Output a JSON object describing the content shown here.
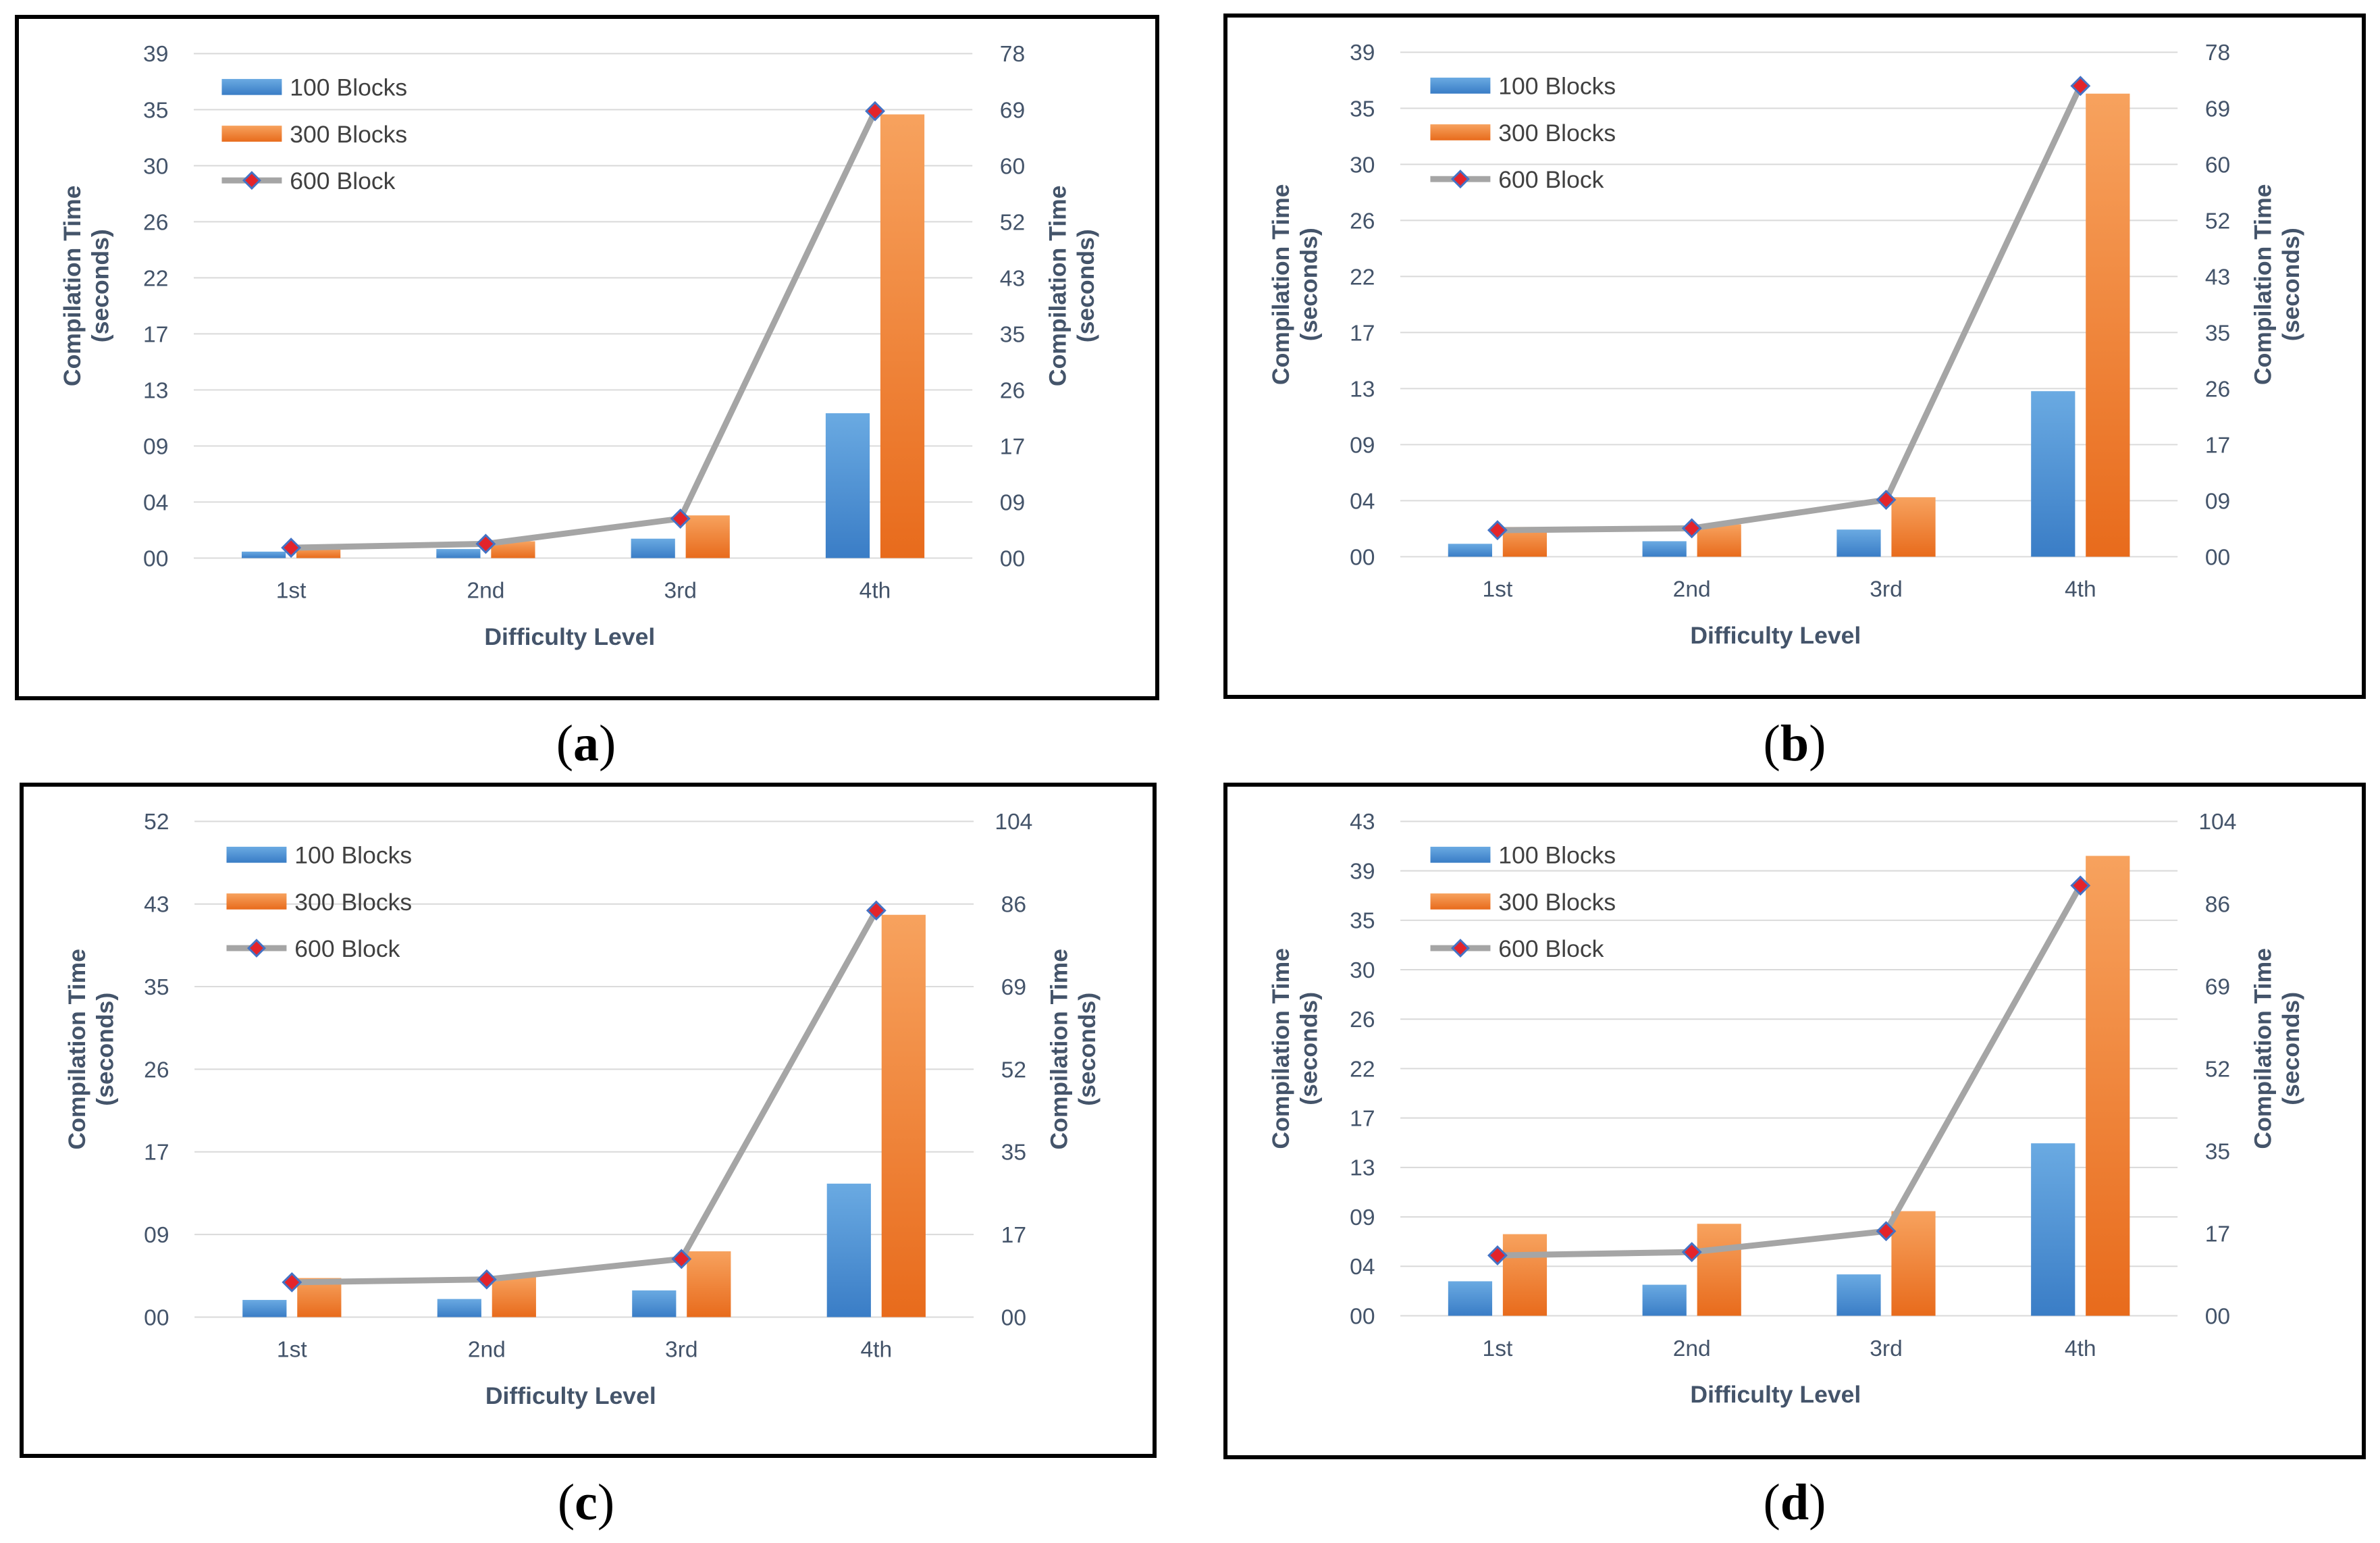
{
  "chart_data": [
    {
      "type": "bar",
      "caption": "a",
      "categories": [
        "1st",
        "2nd",
        "3rd",
        "4th"
      ],
      "xlabel": "Difficulty Level",
      "ylabel": "Compilation Time (seconds)",
      "ylabel_lines": [
        "Compilation Time",
        "(seconds)"
      ],
      "y_ticks": [
        "00",
        "04",
        "09",
        "13",
        "17",
        "22",
        "26",
        "30",
        "35",
        "39"
      ],
      "y2_ticks": [
        "00",
        "09",
        "17",
        "26",
        "35",
        "43",
        "52",
        "60",
        "69",
        "78"
      ],
      "ylim": [
        0,
        39
      ],
      "y2lim": [
        0,
        78
      ],
      "series": [
        {
          "name": "100 Blocks",
          "type": "bar",
          "axis": "left",
          "values": [
            0.5,
            0.7,
            1.5,
            11.2
          ]
        },
        {
          "name": "300 Blocks",
          "type": "bar",
          "axis": "left",
          "values": [
            0.8,
            1.3,
            3.3,
            34.3
          ]
        },
        {
          "name": "600 Block",
          "type": "line",
          "axis": "right",
          "values": [
            1.6,
            2.2,
            6.1,
            69.1
          ]
        }
      ]
    },
    {
      "type": "bar",
      "caption": "b",
      "categories": [
        "1st",
        "2nd",
        "3rd",
        "4th"
      ],
      "xlabel": "Difficulty Level",
      "ylabel": "Compilation Time (seconds)",
      "ylabel_lines": [
        "Compilation Time",
        "(seconds)"
      ],
      "y_ticks": [
        "00",
        "04",
        "09",
        "13",
        "17",
        "22",
        "26",
        "30",
        "35",
        "39"
      ],
      "y2_ticks": [
        "00",
        "09",
        "17",
        "26",
        "35",
        "43",
        "52",
        "60",
        "69",
        "78"
      ],
      "ylim": [
        0,
        39
      ],
      "y2lim": [
        0,
        78
      ],
      "series": [
        {
          "name": "100 Blocks",
          "type": "bar",
          "axis": "left",
          "values": [
            1.0,
            1.2,
            2.1,
            12.8
          ]
        },
        {
          "name": "300 Blocks",
          "type": "bar",
          "axis": "left",
          "values": [
            2.3,
            2.5,
            4.6,
            35.8
          ]
        },
        {
          "name": "600 Block",
          "type": "line",
          "axis": "right",
          "values": [
            4.1,
            4.4,
            8.8,
            72.8
          ]
        }
      ]
    },
    {
      "type": "bar",
      "caption": "c",
      "categories": [
        "1st",
        "2nd",
        "3rd",
        "4th"
      ],
      "xlabel": "Difficulty Level",
      "ylabel": "Compilation Time (seconds)",
      "ylabel_lines": [
        "Compilation Time",
        "(seconds)"
      ],
      "y_ticks": [
        "00",
        "09",
        "17",
        "26",
        "35",
        "43",
        "52"
      ],
      "y2_ticks": [
        "00",
        "17",
        "35",
        "52",
        "69",
        "86",
        "104"
      ],
      "ylim": [
        0,
        52
      ],
      "y2lim": [
        0,
        104
      ],
      "series": [
        {
          "name": "100 Blocks",
          "type": "bar",
          "axis": "left",
          "values": [
            1.8,
            1.9,
            2.8,
            14.0
          ]
        },
        {
          "name": "300 Blocks",
          "type": "bar",
          "axis": "left",
          "values": [
            4.1,
            4.3,
            6.9,
            42.2
          ]
        },
        {
          "name": "600 Block",
          "type": "line",
          "axis": "right",
          "values": [
            7.3,
            7.9,
            12.2,
            85.3
          ]
        }
      ]
    },
    {
      "type": "bar",
      "caption": "d",
      "categories": [
        "1st",
        "2nd",
        "3rd",
        "4th"
      ],
      "xlabel": "Difficulty Level",
      "ylabel": "Compilation Time (seconds)",
      "ylabel_lines": [
        "Compilation Time",
        "(seconds)"
      ],
      "y_ticks": [
        "00",
        "04",
        "09",
        "13",
        "17",
        "22",
        "26",
        "30",
        "35",
        "39",
        "43"
      ],
      "y2_ticks": [
        "00",
        "17",
        "35",
        "52",
        "69",
        "86",
        "104"
      ],
      "ylim": [
        0,
        43
      ],
      "y2lim": [
        0,
        104
      ],
      "series": [
        {
          "name": "100 Blocks",
          "type": "bar",
          "axis": "left",
          "values": [
            3.0,
            2.7,
            3.6,
            15.0
          ]
        },
        {
          "name": "300 Blocks",
          "type": "bar",
          "axis": "left",
          "values": [
            7.1,
            8.0,
            9.1,
            40.0
          ]
        },
        {
          "name": "600 Block",
          "type": "line",
          "axis": "right",
          "values": [
            12.7,
            13.4,
            17.8,
            90.5
          ]
        }
      ]
    }
  ],
  "captions": [
    "a",
    "b",
    "c",
    "d"
  ],
  "colors": {
    "bar1_top": "#6aaae2",
    "bar1_bottom": "#3a7dc6",
    "bar2_top": "#f7a25e",
    "bar2_bottom": "#e86b1c",
    "line": "#a5a5a5",
    "marker_fill": "#e3242b",
    "marker_stroke": "#4472c4",
    "grid": "#d9d9d9",
    "tick_text": "#44546a",
    "legend_text": "#404040"
  }
}
